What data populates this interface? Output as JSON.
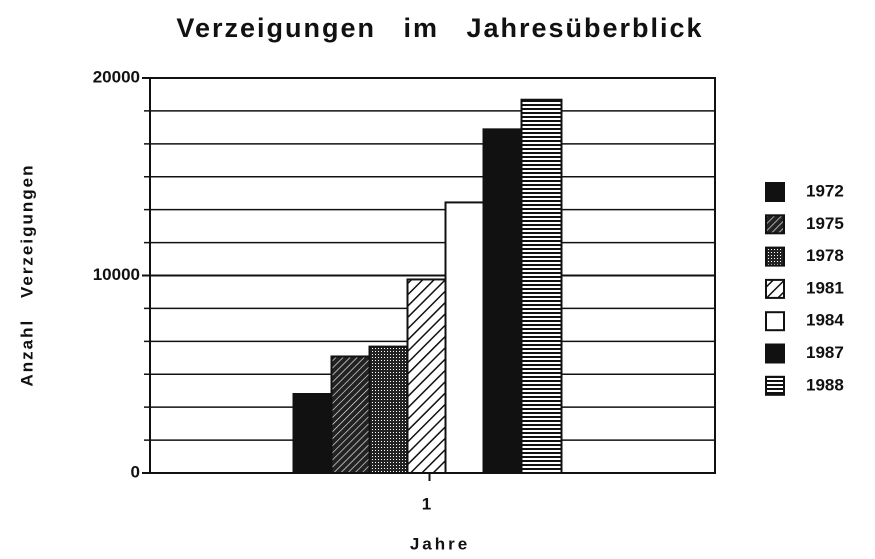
{
  "chart_data": {
    "type": "bar",
    "title": "Verzeigungen im Jahresüberblick",
    "xlabel": "Jahre",
    "ylabel": "Anzahl Verzeigungen",
    "categories": [
      "1"
    ],
    "series": [
      {
        "name": "1972",
        "color": "#111111",
        "pattern": "solid",
        "values": [
          4000
        ]
      },
      {
        "name": "1975",
        "color": "#111111",
        "pattern": "diagonal",
        "values": [
          5900
        ]
      },
      {
        "name": "1978",
        "color": "#111111",
        "pattern": "dots",
        "values": [
          6400
        ]
      },
      {
        "name": "1981",
        "color": "#111111",
        "pattern": "hatch",
        "values": [
          9800
        ]
      },
      {
        "name": "1984",
        "color": "#111111",
        "pattern": "none",
        "values": [
          13700
        ]
      },
      {
        "name": "1987",
        "color": "#111111",
        "pattern": "solid",
        "values": [
          17400
        ]
      },
      {
        "name": "1988",
        "color": "#111111",
        "pattern": "hstripes",
        "values": [
          18900
        ]
      }
    ],
    "ylim": [
      0,
      20000
    ],
    "yticks": [
      0,
      10000,
      20000
    ],
    "minor_yticks": [
      1667,
      3333,
      5000,
      6667,
      8333,
      11667,
      13333,
      15000,
      16667,
      18333
    ],
    "grid": true,
    "legend": "right"
  }
}
